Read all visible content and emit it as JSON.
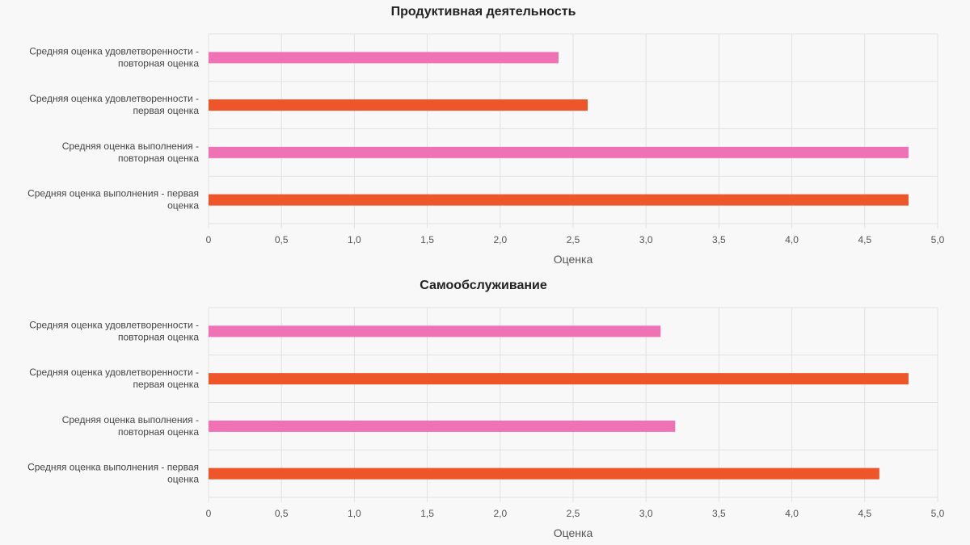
{
  "colors": {
    "pink": "#ee72b4",
    "orange": "#ee5528"
  },
  "chart_data": [
    {
      "type": "bar",
      "orientation": "horizontal",
      "title": "Продуктивная деятельность",
      "xlabel": "Оценка",
      "xlim": [
        0,
        5
      ],
      "xticks": [
        "0",
        "0,5",
        "1,0",
        "1,5",
        "2,0",
        "2,5",
        "3,0",
        "3,5",
        "4,0",
        "4,5",
        "5,0"
      ],
      "grid": true,
      "categories": [
        [
          "Средняя оценка удовлетворенности -",
          "повторная оценка"
        ],
        [
          "Средняя оценка удовлетворенности -",
          "первая оценка"
        ],
        [
          "Средняя оценка выполнения -",
          "повторная оценка"
        ],
        [
          "Средняя оценка выполнения - первая",
          "оценка"
        ]
      ],
      "values": [
        2.4,
        2.6,
        4.8,
        4.8
      ],
      "bar_colors": [
        "pink",
        "orange",
        "pink",
        "orange"
      ]
    },
    {
      "type": "bar",
      "orientation": "horizontal",
      "title": "Самообслуживание",
      "xlabel": "Оценка",
      "xlim": [
        0,
        5
      ],
      "xticks": [
        "0",
        "0,5",
        "1,0",
        "1,5",
        "2,0",
        "2,5",
        "3,0",
        "3,5",
        "4,0",
        "4,5",
        "5,0"
      ],
      "grid": true,
      "categories": [
        [
          "Средняя оценка удовлетворенности -",
          "повторная оценка"
        ],
        [
          "Средняя оценка удовлетворенности -",
          "первая оценка"
        ],
        [
          "Средняя оценка выполнения -",
          "повторная оценка"
        ],
        [
          "Средняя оценка выполнения - первая",
          "оценка"
        ]
      ],
      "values": [
        3.1,
        4.8,
        3.2,
        4.6
      ],
      "bar_colors": [
        "pink",
        "orange",
        "pink",
        "orange"
      ]
    }
  ]
}
